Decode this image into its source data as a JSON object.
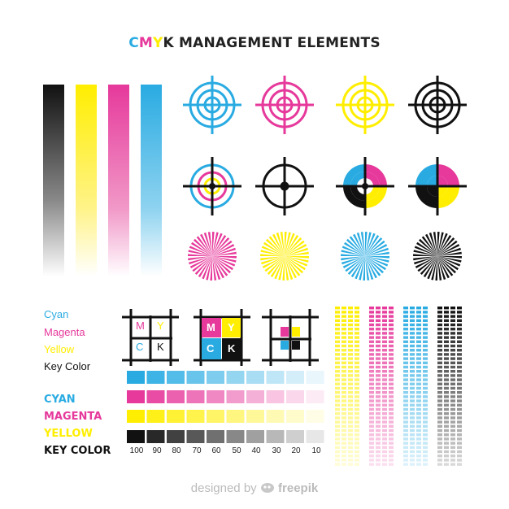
{
  "title": {
    "c": "C",
    "m": "M",
    "y": "Y",
    "rest": "K MANAGEMENT ELEMENTS"
  },
  "colors": {
    "cyan": "#29abe2",
    "magenta": "#e6399b",
    "yellow": "#ffee00",
    "key": "#111111",
    "grey_text": "#c0c0c0"
  },
  "legend_light": [
    "Cyan",
    "Magenta",
    "Yellow",
    "Key Color"
  ],
  "legend_bold": [
    "CYAN",
    "MAGENTA",
    "YELLOW",
    "KEY COLOR"
  ],
  "registration_letters": [
    "M",
    "Y",
    "C",
    "K"
  ],
  "percentages": [
    "100",
    "90",
    "80",
    "70",
    "60",
    "50",
    "40",
    "30",
    "20",
    "10"
  ],
  "footer": {
    "text": "designed by",
    "brand": "freepik",
    "icon": "freepik-logo-icon"
  }
}
